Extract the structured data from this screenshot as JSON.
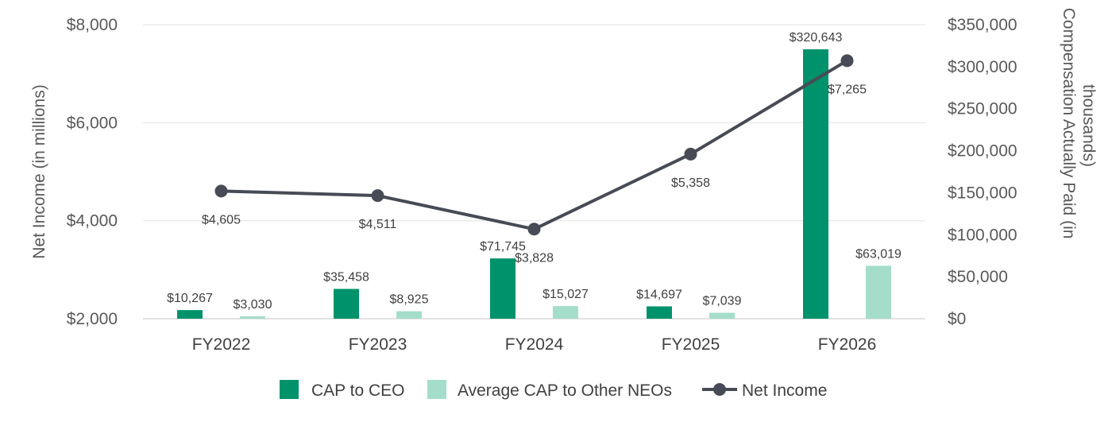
{
  "chart_data": {
    "type": "bar",
    "categories": [
      "FY2022",
      "FY2023",
      "FY2024",
      "FY2025",
      "FY2026"
    ],
    "series": [
      {
        "name": "CAP to CEO",
        "kind": "bar",
        "axis": "right",
        "color": "#00936B",
        "values": [
          10267,
          35458,
          71745,
          14697,
          320643
        ],
        "labels": [
          "$10,267",
          "$35,458",
          "$71,745",
          "$14,697",
          "$320,643"
        ]
      },
      {
        "name": "Average CAP to Other NEOs",
        "kind": "bar",
        "axis": "right",
        "color": "#A5DDCB",
        "values": [
          3030,
          8925,
          15027,
          7039,
          63019
        ],
        "labels": [
          "$3,030",
          "$8,925",
          "$15,027",
          "$7,039",
          "$63,019"
        ]
      },
      {
        "name": "Net Income",
        "kind": "line",
        "axis": "left",
        "color": "#474B55",
        "values": [
          4605,
          4511,
          3828,
          5358,
          7265
        ],
        "labels": [
          "$4,605",
          "$4,511",
          "$3,828",
          "$5,358",
          "$7,265"
        ]
      }
    ],
    "ylabel": "Net Income (in millions)",
    "ylabel2": "Compensation Actually Paid (in thousands)",
    "ylim": [
      2000,
      8000
    ],
    "y2lim": [
      0,
      350000
    ],
    "yticks": [
      "$2,000",
      "$4,000",
      "$6,000",
      "$8,000"
    ],
    "y2ticks": [
      "$0",
      "$50,000",
      "$100,000",
      "$150,000",
      "$200,000",
      "$250,000",
      "$300,000",
      "$350,000"
    ],
    "grid": true,
    "legend_position": "bottom"
  }
}
